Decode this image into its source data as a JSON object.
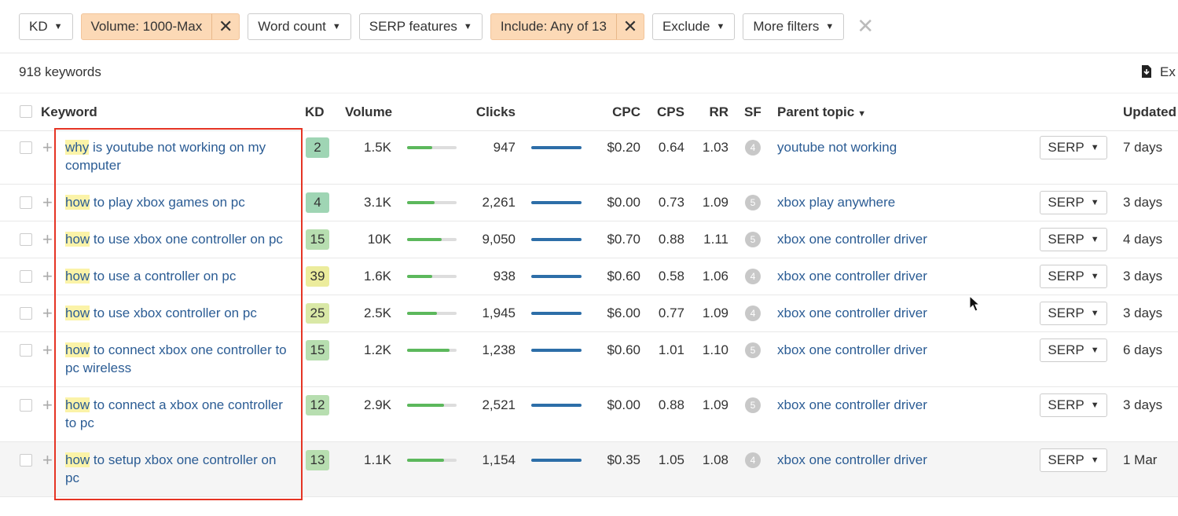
{
  "filters": [
    {
      "label": "KD",
      "active": false
    },
    {
      "label": "Volume: 1000-Max",
      "active": true
    },
    {
      "label": "Word count",
      "active": false
    },
    {
      "label": "SERP features",
      "active": false
    },
    {
      "label": "Include: Any of 13",
      "active": true
    },
    {
      "label": "Exclude",
      "active": false
    },
    {
      "label": "More filters",
      "active": false
    }
  ],
  "summary": "918 keywords",
  "export": "Ex",
  "columns": {
    "keyword": "Keyword",
    "kd": "KD",
    "volume": "Volume",
    "clicks": "Clicks",
    "cpc": "CPC",
    "cps": "CPS",
    "rr": "RR",
    "sf": "SF",
    "parent": "Parent topic",
    "updated": "Updated"
  },
  "serp_button": "SERP",
  "rows": [
    {
      "highlight": "why",
      "keyword": "is youtube not working on my computer",
      "kd": 2,
      "volume": "1.5K",
      "volume_bar": 0.5,
      "clicks": "947",
      "cpc": "$0.20",
      "cps": "0.64",
      "rr": "1.03",
      "sf": 4,
      "parent": "youtube not working",
      "updated": "7 days"
    },
    {
      "highlight": "how",
      "keyword": "to play xbox games on pc",
      "kd": 4,
      "volume": "3.1K",
      "volume_bar": 0.55,
      "clicks": "2,261",
      "cpc": "$0.00",
      "cps": "0.73",
      "rr": "1.09",
      "sf": 5,
      "parent": "xbox play anywhere",
      "updated": "3 days"
    },
    {
      "highlight": "how",
      "keyword": "to use xbox one controller on pc",
      "kd": 15,
      "volume": "10K",
      "volume_bar": 0.7,
      "clicks": "9,050",
      "cpc": "$0.70",
      "cps": "0.88",
      "rr": "1.11",
      "sf": 5,
      "parent": "xbox one controller driver",
      "updated": "4 days"
    },
    {
      "highlight": "how",
      "keyword": "to use a controller on pc",
      "kd": 39,
      "volume": "1.6K",
      "volume_bar": 0.5,
      "clicks": "938",
      "cpc": "$0.60",
      "cps": "0.58",
      "rr": "1.06",
      "sf": 4,
      "parent": "xbox one controller driver",
      "updated": "3 days"
    },
    {
      "highlight": "how",
      "keyword": "to use xbox controller on pc",
      "kd": 25,
      "volume": "2.5K",
      "volume_bar": 0.6,
      "clicks": "1,945",
      "cpc": "$6.00",
      "cps": "0.77",
      "rr": "1.09",
      "sf": 4,
      "parent": "xbox one controller driver",
      "updated": "3 days"
    },
    {
      "highlight": "how",
      "keyword": "to connect xbox one controller to pc wireless",
      "kd": 15,
      "volume": "1.2K",
      "volume_bar": 0.85,
      "clicks": "1,238",
      "cpc": "$0.60",
      "cps": "1.01",
      "rr": "1.10",
      "sf": 5,
      "parent": "xbox one controller driver",
      "updated": "6 days"
    },
    {
      "highlight": "how",
      "keyword": "to connect a xbox one controller to pc",
      "kd": 12,
      "volume": "2.9K",
      "volume_bar": 0.75,
      "clicks": "2,521",
      "cpc": "$0.00",
      "cps": "0.88",
      "rr": "1.09",
      "sf": 5,
      "parent": "xbox one controller driver",
      "updated": "3 days"
    },
    {
      "highlight": "how",
      "keyword": "to setup xbox one controller on pc",
      "kd": 13,
      "volume": "1.1K",
      "volume_bar": 0.75,
      "clicks": "1,154",
      "cpc": "$0.35",
      "cps": "1.05",
      "rr": "1.08",
      "sf": 4,
      "parent": "xbox one controller driver",
      "updated": "1 Mar"
    }
  ]
}
